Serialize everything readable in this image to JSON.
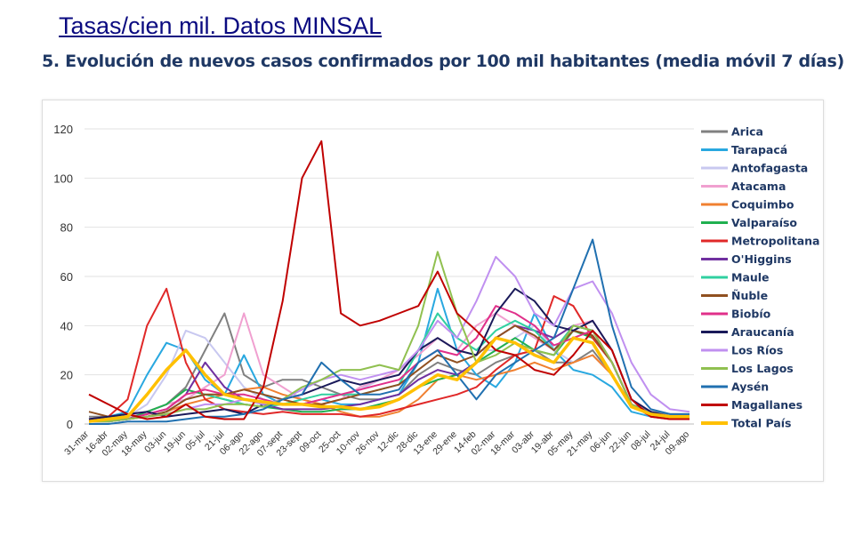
{
  "header": {
    "title": "Tasas/cien mil. Datos MINSAL",
    "subtitle": "5.  Evolución de nuevos casos confirmados por 100 mil habitantes (media móvil 7 días)"
  },
  "chart_data": {
    "type": "line",
    "title": "",
    "xlabel": "",
    "ylabel": "",
    "ylim": [
      0,
      120
    ],
    "yticks": [
      0,
      20,
      40,
      60,
      80,
      100,
      120
    ],
    "grid": true,
    "legend": "right",
    "categories": [
      "31-mar",
      "16-abr",
      "02-may",
      "18-may",
      "03-jun",
      "19-jun",
      "05-jul",
      "21-jul",
      "06-ago",
      "22-ago",
      "07-sept",
      "23-sept",
      "09-oct",
      "25-oct",
      "10-nov",
      "26-nov",
      "12-dic",
      "28-dic",
      "13-ene",
      "29-ene",
      "14-feb",
      "02-mar",
      "18-mar",
      "03-abr",
      "19-abr",
      "05-may",
      "21-may",
      "06-jun",
      "22-jun",
      "08-jul",
      "24-jul",
      "09-ago"
    ],
    "series": [
      {
        "name": "Arica",
        "color": "#808080",
        "values": [
          3,
          3,
          3,
          5,
          8,
          15,
          30,
          45,
          20,
          15,
          18,
          18,
          15,
          12,
          10,
          10,
          12,
          20,
          25,
          22,
          20,
          25,
          28,
          30,
          25,
          25,
          30,
          20,
          8,
          5,
          4,
          4
        ]
      },
      {
        "name": "Tarapacá",
        "color": "#29A8E0",
        "values": [
          2,
          3,
          5,
          20,
          33,
          30,
          18,
          12,
          28,
          12,
          8,
          8,
          10,
          8,
          8,
          10,
          12,
          25,
          55,
          30,
          20,
          15,
          25,
          45,
          30,
          22,
          20,
          15,
          5,
          3,
          3,
          3
        ]
      },
      {
        "name": "Antofagasta",
        "color": "#C8C8F0",
        "values": [
          1,
          2,
          3,
          8,
          20,
          38,
          35,
          25,
          15,
          10,
          8,
          8,
          10,
          12,
          14,
          18,
          20,
          30,
          45,
          35,
          30,
          30,
          35,
          40,
          30,
          25,
          28,
          20,
          8,
          4,
          3,
          3
        ]
      },
      {
        "name": "Atacama",
        "color": "#F0A0D0",
        "values": [
          2,
          2,
          3,
          5,
          8,
          10,
          15,
          20,
          45,
          20,
          15,
          10,
          8,
          10,
          15,
          18,
          22,
          28,
          35,
          30,
          40,
          45,
          40,
          35,
          30,
          40,
          42,
          30,
          10,
          5,
          3,
          3
        ]
      },
      {
        "name": "Coquimbo",
        "color": "#F08030",
        "values": [
          1,
          1,
          2,
          3,
          5,
          8,
          10,
          12,
          14,
          15,
          12,
          10,
          8,
          5,
          3,
          3,
          5,
          10,
          18,
          20,
          18,
          20,
          22,
          25,
          22,
          25,
          28,
          20,
          8,
          4,
          3,
          3
        ]
      },
      {
        "name": "Valparaíso",
        "color": "#20B050",
        "values": [
          1,
          1,
          2,
          5,
          8,
          14,
          12,
          10,
          8,
          7,
          6,
          5,
          5,
          6,
          6,
          8,
          10,
          15,
          18,
          20,
          25,
          30,
          35,
          30,
          28,
          38,
          35,
          25,
          8,
          4,
          3,
          3
        ]
      },
      {
        "name": "Metropolitana",
        "color": "#E02828",
        "values": [
          2,
          3,
          10,
          40,
          55,
          25,
          10,
          6,
          5,
          4,
          5,
          4,
          4,
          4,
          3,
          4,
          6,
          8,
          10,
          12,
          15,
          22,
          28,
          30,
          52,
          48,
          35,
          25,
          8,
          3,
          2,
          2
        ]
      },
      {
        "name": "O'Higgins",
        "color": "#7030A0",
        "values": [
          1,
          1,
          2,
          4,
          6,
          12,
          25,
          15,
          10,
          8,
          6,
          6,
          6,
          7,
          8,
          10,
          12,
          18,
          22,
          20,
          25,
          35,
          40,
          38,
          35,
          40,
          38,
          25,
          8,
          4,
          3,
          3
        ]
      },
      {
        "name": "Maule",
        "color": "#30D0A0",
        "values": [
          1,
          1,
          2,
          3,
          5,
          10,
          12,
          10,
          8,
          7,
          8,
          10,
          12,
          12,
          12,
          14,
          16,
          30,
          45,
          35,
          30,
          38,
          42,
          38,
          30,
          40,
          38,
          25,
          8,
          4,
          3,
          3
        ]
      },
      {
        "name": "Ñuble",
        "color": "#905020",
        "values": [
          5,
          3,
          2,
          3,
          5,
          10,
          12,
          12,
          14,
          12,
          10,
          8,
          8,
          10,
          12,
          14,
          16,
          22,
          28,
          25,
          28,
          35,
          40,
          36,
          30,
          38,
          36,
          25,
          8,
          4,
          3,
          3
        ]
      },
      {
        "name": "Biobío",
        "color": "#E0308A",
        "values": [
          1,
          1,
          2,
          4,
          6,
          12,
          14,
          12,
          12,
          10,
          8,
          8,
          10,
          12,
          14,
          16,
          18,
          25,
          30,
          28,
          35,
          48,
          45,
          40,
          32,
          35,
          38,
          25,
          8,
          4,
          3,
          3
        ]
      },
      {
        "name": "Araucanía",
        "color": "#1A1A5A",
        "values": [
          2,
          3,
          4,
          5,
          3,
          4,
          5,
          6,
          4,
          8,
          10,
          12,
          15,
          18,
          16,
          18,
          20,
          30,
          35,
          30,
          28,
          45,
          55,
          50,
          40,
          38,
          42,
          30,
          10,
          5,
          3,
          3
        ]
      },
      {
        "name": "Los Ríos",
        "color": "#C090F0",
        "values": [
          1,
          1,
          2,
          3,
          4,
          6,
          8,
          8,
          10,
          8,
          10,
          14,
          18,
          20,
          18,
          20,
          22,
          30,
          42,
          35,
          50,
          68,
          60,
          45,
          40,
          55,
          58,
          45,
          25,
          12,
          6,
          5
        ]
      },
      {
        "name": "Los Lagos",
        "color": "#90C050",
        "values": [
          1,
          1,
          2,
          3,
          4,
          6,
          6,
          8,
          8,
          7,
          10,
          15,
          18,
          22,
          22,
          24,
          22,
          40,
          70,
          45,
          25,
          28,
          33,
          30,
          28,
          40,
          38,
          25,
          8,
          4,
          3,
          3
        ]
      },
      {
        "name": "Aysén",
        "color": "#2070B0",
        "values": [
          0,
          0,
          1,
          1,
          1,
          2,
          3,
          3,
          4,
          6,
          10,
          12,
          25,
          18,
          12,
          12,
          14,
          25,
          30,
          20,
          10,
          20,
          25,
          30,
          35,
          55,
          75,
          40,
          15,
          6,
          4,
          4
        ]
      },
      {
        "name": "Magallanes",
        "color": "#C00000",
        "values": [
          12,
          8,
          4,
          2,
          3,
          8,
          3,
          2,
          2,
          15,
          50,
          100,
          115,
          45,
          40,
          42,
          45,
          48,
          62,
          45,
          38,
          30,
          28,
          22,
          20,
          28,
          38,
          30,
          10,
          3,
          2,
          2
        ]
      },
      {
        "name": "Total País",
        "color": "#FFC000",
        "values": [
          1,
          2,
          3,
          12,
          22,
          30,
          20,
          12,
          10,
          9,
          8,
          8,
          7,
          7,
          6,
          7,
          10,
          15,
          20,
          18,
          25,
          35,
          33,
          28,
          25,
          35,
          33,
          20,
          7,
          4,
          3,
          3
        ]
      }
    ]
  }
}
